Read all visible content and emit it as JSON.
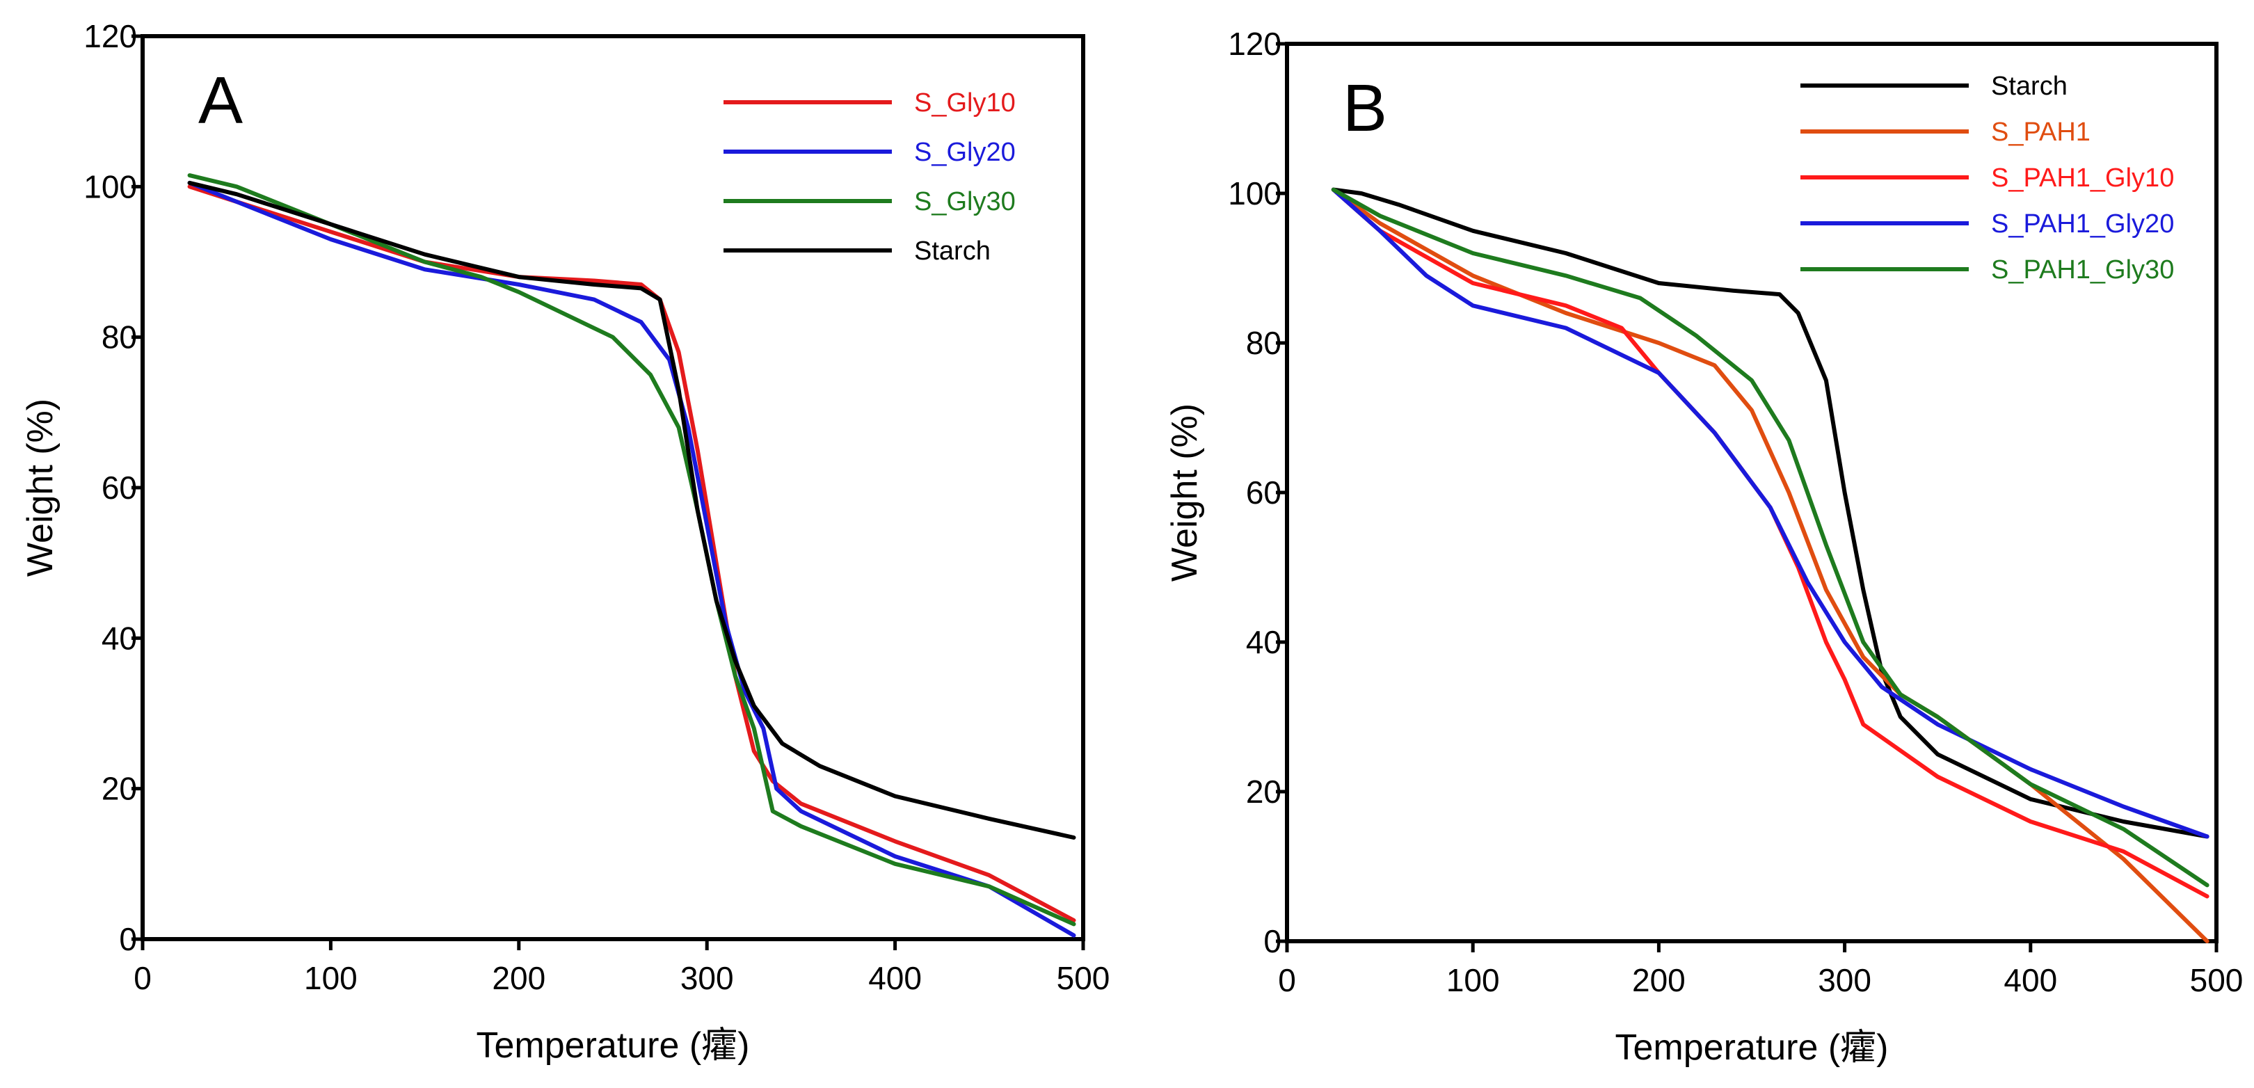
{
  "chart_data": [
    {
      "type": "line",
      "panel_label": "A",
      "xlabel": "Temperature (癨)",
      "ylabel": "Weight (%)",
      "xlim": [
        0,
        500
      ],
      "ylim": [
        0,
        120
      ],
      "xticks": [
        0,
        100,
        200,
        300,
        400,
        500
      ],
      "yticks": [
        0,
        20,
        40,
        60,
        80,
        100,
        120
      ],
      "legend_position": "top-right",
      "series": [
        {
          "name": "S_Gly10",
          "color": "#e41a1c",
          "x": [
            25,
            50,
            100,
            150,
            200,
            240,
            265,
            275,
            285,
            295,
            305,
            315,
            325,
            335,
            350,
            400,
            450,
            495
          ],
          "y": [
            100,
            98,
            94,
            90,
            88,
            87.5,
            87,
            85,
            78,
            65,
            50,
            35,
            25,
            21,
            18,
            13,
            8.5,
            2.5
          ]
        },
        {
          "name": "S_Gly20",
          "color": "#1a1adb",
          "x": [
            25,
            50,
            100,
            150,
            200,
            240,
            265,
            280,
            290,
            300,
            310,
            320,
            330,
            337,
            350,
            400,
            450,
            495
          ],
          "y": [
            100.5,
            98,
            93,
            89,
            87,
            85,
            82,
            77,
            68,
            55,
            42,
            33,
            28,
            20,
            17,
            11,
            7,
            0.5
          ]
        },
        {
          "name": "S_Gly30",
          "color": "#1e7b1e",
          "x": [
            25,
            50,
            100,
            150,
            180,
            200,
            250,
            270,
            285,
            295,
            305,
            315,
            325,
            335,
            350,
            400,
            450,
            495
          ],
          "y": [
            101.5,
            100,
            95,
            90,
            88,
            86,
            80,
            75,
            68,
            57,
            45,
            35,
            28,
            17,
            15,
            10,
            7,
            2
          ]
        },
        {
          "name": "Starch",
          "color": "#000000",
          "x": [
            25,
            50,
            100,
            150,
            200,
            240,
            265,
            275,
            285,
            295,
            305,
            315,
            325,
            340,
            360,
            400,
            450,
            495
          ],
          "y": [
            100.5,
            99,
            95,
            91,
            88,
            87,
            86.5,
            85,
            73,
            57,
            45,
            37,
            31,
            26,
            23,
            19,
            16,
            13.5
          ]
        }
      ]
    },
    {
      "type": "line",
      "panel_label": "B",
      "xlabel": "Temperature (癨)",
      "ylabel": "Weight (%)",
      "xlim": [
        0,
        500
      ],
      "ylim": [
        0,
        120
      ],
      "xticks": [
        0,
        100,
        200,
        300,
        400,
        500
      ],
      "yticks": [
        0,
        20,
        40,
        60,
        80,
        100,
        120
      ],
      "legend_position": "top-right",
      "series": [
        {
          "name": "Starch",
          "color": "#000000",
          "x": [
            25,
            40,
            60,
            100,
            150,
            200,
            240,
            265,
            275,
            290,
            300,
            310,
            320,
            330,
            350,
            400,
            450,
            495
          ],
          "y": [
            100.5,
            100,
            98.5,
            95,
            92,
            88,
            87,
            86.5,
            84,
            75,
            60,
            47,
            36,
            30,
            25,
            19,
            16,
            14
          ]
        },
        {
          "name": "S_PAH1",
          "color": "#e04d10",
          "x": [
            25,
            50,
            100,
            150,
            200,
            230,
            250,
            270,
            290,
            310,
            330,
            350,
            400,
            450,
            495
          ],
          "y": [
            100.5,
            96,
            89,
            84,
            80,
            77,
            71,
            60,
            47,
            38,
            33,
            30,
            21,
            11,
            0
          ]
        },
        {
          "name": "S_PAH1_Gly10",
          "color": "#ff1a1a",
          "x": [
            25,
            50,
            100,
            150,
            180,
            200,
            230,
            260,
            275,
            290,
            300,
            310,
            330,
            350,
            400,
            450,
            495
          ],
          "y": [
            100.5,
            95,
            88,
            85,
            82,
            76,
            68,
            58,
            50,
            40,
            35,
            29,
            25.5,
            22,
            16,
            12,
            6
          ]
        },
        {
          "name": "S_PAH1_Gly20",
          "color": "#1a1adb",
          "x": [
            25,
            50,
            75,
            100,
            150,
            200,
            230,
            260,
            280,
            300,
            320,
            350,
            400,
            450,
            495
          ],
          "y": [
            100.5,
            95,
            89,
            85,
            82,
            76,
            68,
            58,
            48,
            40,
            34,
            29,
            23,
            18,
            14
          ]
        },
        {
          "name": "S_PAH1_Gly30",
          "color": "#1e7b1e",
          "x": [
            25,
            50,
            100,
            150,
            190,
            220,
            250,
            270,
            290,
            310,
            330,
            350,
            400,
            450,
            495
          ],
          "y": [
            100.5,
            97,
            92,
            89,
            86,
            81,
            75,
            67,
            53,
            40,
            33,
            30,
            21,
            15,
            7.5
          ]
        }
      ]
    }
  ]
}
